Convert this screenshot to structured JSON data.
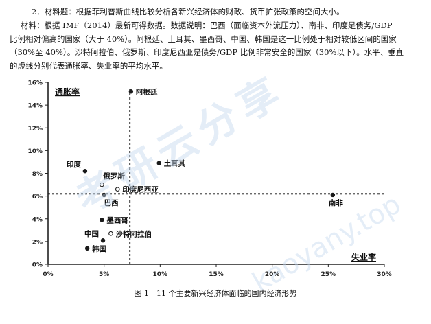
{
  "question": {
    "title": "2．材料题：根据菲利普斯曲线比较分析各新兴经济体的财政、货币扩张政策的空间大小。"
  },
  "material": {
    "line1": "材料：根据 IMF（2014）最新可得数据。数据说明：巴西（面临资本外流压力）、南非、印度是债务/GDP",
    "line2": "比例相对偏高的国家（大于 40%）。阿根廷、土耳其、墨西哥、中国、韩国是这一比例处于相对较低区间的国家",
    "line3": "（30%至 40%）。沙特阿拉伯、俄罗斯、印度尼西亚是债务/GDP 比例非常安全的国家（30%以下）。水平、垂直",
    "line4": "的虚线分别代表通胀率、失业率的平均水平。"
  },
  "watermark": {
    "text1": "考研云分享",
    "text2": "kaoyany.top"
  },
  "chart_data": {
    "type": "scatter",
    "xlabel": "失业率",
    "ylabel": "通胀率",
    "xlim": [
      0,
      30
    ],
    "ylim": [
      0,
      16
    ],
    "x_ticks": [
      0,
      5,
      10,
      15,
      20,
      25,
      30
    ],
    "x_tick_labels": [
      "0%",
      "5%",
      "10%",
      "15%",
      "20%",
      "25%",
      "30%"
    ],
    "y_ticks": [
      0,
      2,
      4,
      6,
      8,
      10,
      12,
      14,
      16
    ],
    "y_tick_labels": [
      "0%",
      "2%",
      "4%",
      "6%",
      "8%",
      "10%",
      "12%",
      "14%",
      "16%"
    ],
    "grid": false,
    "avg_unemployment": 7.3,
    "avg_inflation": 6.2,
    "points": [
      {
        "name": "阿根廷",
        "x": 7.4,
        "y": 15.2,
        "marker": "filled",
        "label_pos": "right"
      },
      {
        "name": "土耳其",
        "x": 9.9,
        "y": 8.9,
        "marker": "filled",
        "label_pos": "right"
      },
      {
        "name": "印度",
        "x": 3.3,
        "y": 8.2,
        "marker": "filled",
        "label_pos": "above-left"
      },
      {
        "name": "俄罗斯",
        "x": 4.8,
        "y": 7.0,
        "marker": "open",
        "label_pos": "above-right"
      },
      {
        "name": "印度尼西亚",
        "x": 6.2,
        "y": 6.6,
        "marker": "open",
        "label_pos": "right"
      },
      {
        "name": "巴西",
        "x": 5.0,
        "y": 6.1,
        "marker": "filled",
        "label_pos": "below"
      },
      {
        "name": "南非",
        "x": 25.4,
        "y": 6.1,
        "marker": "filled",
        "label_pos": "below"
      },
      {
        "name": "墨西哥",
        "x": 4.8,
        "y": 3.9,
        "marker": "filled",
        "label_pos": "right"
      },
      {
        "name": "沙特阿拉伯",
        "x": 5.6,
        "y": 2.7,
        "marker": "open",
        "label_pos": "right"
      },
      {
        "name": "中国",
        "x": 4.9,
        "y": 2.1,
        "marker": "filled",
        "label_pos": "above-left"
      },
      {
        "name": "韩国",
        "x": 3.5,
        "y": 1.4,
        "marker": "filled",
        "label_pos": "right"
      }
    ]
  },
  "caption": "图 1　11 个主要新兴经济体面临的国内经济形势"
}
